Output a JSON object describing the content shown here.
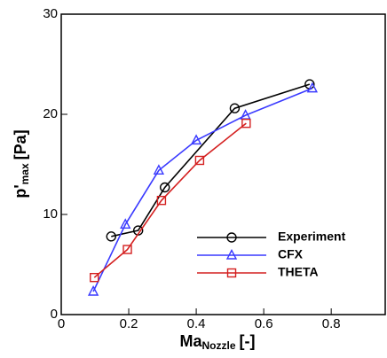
{
  "chart_data": {
    "type": "line",
    "y_label": {
      "main": "p'",
      "sub": "max",
      "unit": "[Pa]"
    },
    "x_label": {
      "main": "Ma",
      "sub": "Nozzle",
      "unit": "[-]"
    },
    "xlim": [
      0,
      0.96
    ],
    "ylim": [
      0,
      30
    ],
    "xticks": [
      0,
      0.2,
      0.4,
      0.6,
      0.8
    ],
    "yticks": [
      0,
      10,
      20,
      30
    ],
    "legend": "lower right",
    "series": [
      {
        "name": "Experiment",
        "color": "#000000",
        "marker": "circle",
        "x": [
          0.148,
          0.228,
          0.307,
          0.514,
          0.736
        ],
        "values": [
          7.8,
          8.4,
          12.7,
          20.6,
          23.0
        ]
      },
      {
        "name": "CFX",
        "color": "#3a3aff",
        "marker": "triangle",
        "x": [
          0.095,
          0.19,
          0.289,
          0.4,
          0.546,
          0.744
        ],
        "values": [
          2.3,
          9.0,
          14.4,
          17.4,
          19.9,
          22.6
        ]
      },
      {
        "name": "THETA",
        "color": "#d42020",
        "marker": "square",
        "x": [
          0.098,
          0.196,
          0.297,
          0.41,
          0.548
        ],
        "values": [
          3.7,
          6.5,
          11.4,
          15.4,
          19.1
        ]
      }
    ]
  }
}
